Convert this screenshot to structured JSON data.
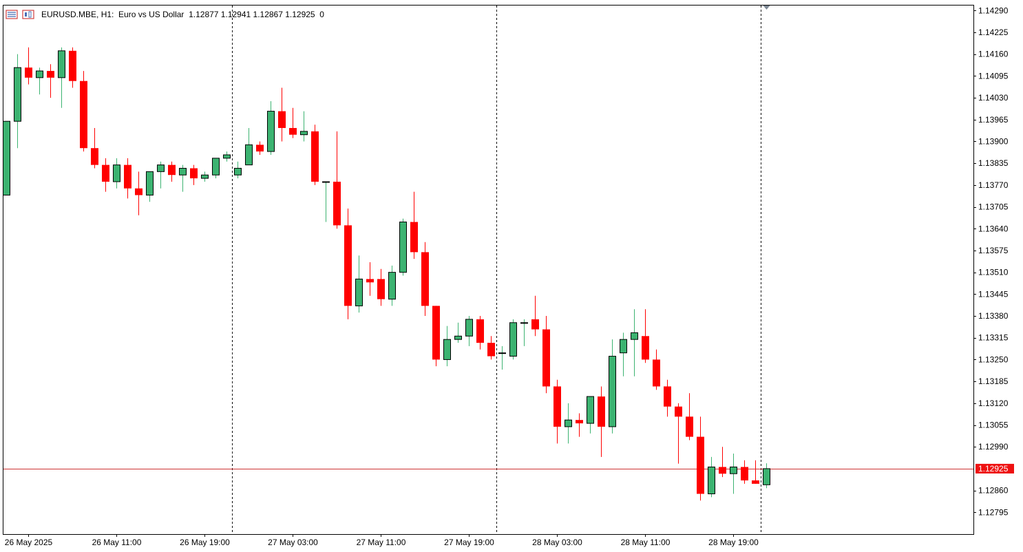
{
  "header": {
    "symbol": "EURUSD.MBE",
    "timeframe": "H1:",
    "description": "Euro vs US Dollar",
    "ohlc": "1.12877 1.12941 1.12867 1.12925",
    "volume": "0",
    "icons": [
      "symbol-list-icon",
      "chart-type-icon"
    ]
  },
  "colors": {
    "bull": "#3cb371",
    "bear": "#ff0000",
    "outline": "#000000",
    "price_line": "#cc3333",
    "price_tag_bg": "#ee1111",
    "grid_separator": "#000000"
  },
  "chart_data": {
    "type": "candlestick",
    "symbol": "EURUSD.MBE",
    "timeframe": "H1",
    "ylim": [
      1.1273,
      1.14307
    ],
    "y_ticks": [
      "1.14290",
      "1.14225",
      "1.14160",
      "1.14095",
      "1.14030",
      "1.13965",
      "1.13900",
      "1.13835",
      "1.13770",
      "1.13705",
      "1.13640",
      "1.13575",
      "1.13510",
      "1.13445",
      "1.13380",
      "1.13315",
      "1.13250",
      "1.13185",
      "1.13120",
      "1.13055",
      "1.12990",
      "1.12860",
      "1.12795"
    ],
    "x_labels": [
      {
        "index": 2,
        "label": "26 May 2025"
      },
      {
        "index": 10,
        "label": "26 May 11:00"
      },
      {
        "index": 18,
        "label": "26 May 19:00"
      },
      {
        "index": 26,
        "label": "27 May 03:00"
      },
      {
        "index": 34,
        "label": "27 May 11:00"
      },
      {
        "index": 42,
        "label": "27 May 19:00"
      },
      {
        "index": 50,
        "label": "28 May 03:00"
      },
      {
        "index": 58,
        "label": "28 May 11:00"
      },
      {
        "index": 66,
        "label": "28 May 19:00"
      }
    ],
    "day_separators": [
      20.5,
      44.5,
      68.5
    ],
    "current_price": 1.12925,
    "current_price_label": "1.12925",
    "candles": [
      {
        "o": 1.1374,
        "h": 1.1396,
        "l": 1.1374,
        "c": 1.1396
      },
      {
        "o": 1.1396,
        "h": 1.1416,
        "l": 1.1388,
        "c": 1.1412
      },
      {
        "o": 1.1412,
        "h": 1.1418,
        "l": 1.1407,
        "c": 1.1409
      },
      {
        "o": 1.1409,
        "h": 1.1412,
        "l": 1.1404,
        "c": 1.1411
      },
      {
        "o": 1.1411,
        "h": 1.1413,
        "l": 1.1403,
        "c": 1.1409
      },
      {
        "o": 1.1409,
        "h": 1.1418,
        "l": 1.14,
        "c": 1.1417
      },
      {
        "o": 1.1417,
        "h": 1.1418,
        "l": 1.1406,
        "c": 1.1408
      },
      {
        "o": 1.1408,
        "h": 1.1411,
        "l": 1.1387,
        "c": 1.1388
      },
      {
        "o": 1.1388,
        "h": 1.1394,
        "l": 1.1382,
        "c": 1.1383
      },
      {
        "o": 1.1383,
        "h": 1.1385,
        "l": 1.1375,
        "c": 1.1378
      },
      {
        "o": 1.1378,
        "h": 1.1385,
        "l": 1.1376,
        "c": 1.1383
      },
      {
        "o": 1.1383,
        "h": 1.1385,
        "l": 1.1373,
        "c": 1.1376
      },
      {
        "o": 1.1376,
        "h": 1.1381,
        "l": 1.1368,
        "c": 1.1374
      },
      {
        "o": 1.1374,
        "h": 1.1381,
        "l": 1.1372,
        "c": 1.1381
      },
      {
        "o": 1.1381,
        "h": 1.1384,
        "l": 1.1376,
        "c": 1.1383
      },
      {
        "o": 1.1383,
        "h": 1.1384,
        "l": 1.1378,
        "c": 1.138
      },
      {
        "o": 1.138,
        "h": 1.1383,
        "l": 1.1375,
        "c": 1.1382
      },
      {
        "o": 1.1382,
        "h": 1.1383,
        "l": 1.1377,
        "c": 1.1379
      },
      {
        "o": 1.1379,
        "h": 1.1381,
        "l": 1.1378,
        "c": 1.138
      },
      {
        "o": 1.138,
        "h": 1.1385,
        "l": 1.1379,
        "c": 1.1385
      },
      {
        "o": 1.1385,
        "h": 1.1387,
        "l": 1.1384,
        "c": 1.1386
      },
      {
        "o": 1.138,
        "h": 1.1384,
        "l": 1.1379,
        "c": 1.1382
      },
      {
        "o": 1.1383,
        "h": 1.1394,
        "l": 1.1383,
        "c": 1.1389
      },
      {
        "o": 1.1389,
        "h": 1.139,
        "l": 1.1386,
        "c": 1.1387
      },
      {
        "o": 1.1387,
        "h": 1.1402,
        "l": 1.1386,
        "c": 1.1399
      },
      {
        "o": 1.1399,
        "h": 1.1406,
        "l": 1.139,
        "c": 1.1394
      },
      {
        "o": 1.1394,
        "h": 1.14,
        "l": 1.1391,
        "c": 1.1392
      },
      {
        "o": 1.1392,
        "h": 1.1399,
        "l": 1.139,
        "c": 1.1393
      },
      {
        "o": 1.1393,
        "h": 1.1395,
        "l": 1.1377,
        "c": 1.1378
      },
      {
        "o": 1.1378,
        "h": 1.1378,
        "l": 1.1366,
        "c": 1.1378
      },
      {
        "o": 1.1378,
        "h": 1.1393,
        "l": 1.1364,
        "c": 1.1365
      },
      {
        "o": 1.1365,
        "h": 1.137,
        "l": 1.1337,
        "c": 1.1341
      },
      {
        "o": 1.1341,
        "h": 1.1356,
        "l": 1.1339,
        "c": 1.1349
      },
      {
        "o": 1.1349,
        "h": 1.1354,
        "l": 1.1344,
        "c": 1.1348
      },
      {
        "o": 1.1349,
        "h": 1.1352,
        "l": 1.1341,
        "c": 1.1343
      },
      {
        "o": 1.1343,
        "h": 1.1353,
        "l": 1.1341,
        "c": 1.1351
      },
      {
        "o": 1.1351,
        "h": 1.1367,
        "l": 1.135,
        "c": 1.1366
      },
      {
        "o": 1.1366,
        "h": 1.1375,
        "l": 1.1355,
        "c": 1.1357
      },
      {
        "o": 1.1357,
        "h": 1.136,
        "l": 1.1338,
        "c": 1.1341
      },
      {
        "o": 1.1341,
        "h": 1.1341,
        "l": 1.1323,
        "c": 1.1325
      },
      {
        "o": 1.1325,
        "h": 1.1335,
        "l": 1.1323,
        "c": 1.1331
      },
      {
        "o": 1.1331,
        "h": 1.1336,
        "l": 1.133,
        "c": 1.1332
      },
      {
        "o": 1.1332,
        "h": 1.1338,
        "l": 1.1329,
        "c": 1.1337
      },
      {
        "o": 1.1337,
        "h": 1.1338,
        "l": 1.1328,
        "c": 1.133
      },
      {
        "o": 1.133,
        "h": 1.1332,
        "l": 1.1325,
        "c": 1.1326
      },
      {
        "o": 1.1327,
        "h": 1.1329,
        "l": 1.1322,
        "c": 1.1327
      },
      {
        "o": 1.1326,
        "h": 1.1337,
        "l": 1.1325,
        "c": 1.1336
      },
      {
        "o": 1.1336,
        "h": 1.1337,
        "l": 1.1329,
        "c": 1.1336
      },
      {
        "o": 1.1337,
        "h": 1.1344,
        "l": 1.1332,
        "c": 1.1334
      },
      {
        "o": 1.1334,
        "h": 1.1338,
        "l": 1.1315,
        "c": 1.1317
      },
      {
        "o": 1.1317,
        "h": 1.1319,
        "l": 1.13,
        "c": 1.1305
      },
      {
        "o": 1.1305,
        "h": 1.1312,
        "l": 1.13,
        "c": 1.1307
      },
      {
        "o": 1.1307,
        "h": 1.1309,
        "l": 1.1302,
        "c": 1.1306
      },
      {
        "o": 1.1306,
        "h": 1.1314,
        "l": 1.1303,
        "c": 1.1314
      },
      {
        "o": 1.1314,
        "h": 1.1317,
        "l": 1.1296,
        "c": 1.1305
      },
      {
        "o": 1.1305,
        "h": 1.1331,
        "l": 1.1303,
        "c": 1.1326
      },
      {
        "o": 1.1327,
        "h": 1.1333,
        "l": 1.132,
        "c": 1.1331
      },
      {
        "o": 1.1331,
        "h": 1.134,
        "l": 1.132,
        "c": 1.1333
      },
      {
        "o": 1.1332,
        "h": 1.134,
        "l": 1.1324,
        "c": 1.1325
      },
      {
        "o": 1.1325,
        "h": 1.1328,
        "l": 1.1316,
        "c": 1.1317
      },
      {
        "o": 1.1317,
        "h": 1.1319,
        "l": 1.1308,
        "c": 1.1311
      },
      {
        "o": 1.1311,
        "h": 1.1312,
        "l": 1.1294,
        "c": 1.1308
      },
      {
        "o": 1.1308,
        "h": 1.1315,
        "l": 1.1301,
        "c": 1.1302
      },
      {
        "o": 1.1302,
        "h": 1.1308,
        "l": 1.1283,
        "c": 1.1285
      },
      {
        "o": 1.1285,
        "h": 1.1296,
        "l": 1.1284,
        "c": 1.1293
      },
      {
        "o": 1.1293,
        "h": 1.1299,
        "l": 1.129,
        "c": 1.1291
      },
      {
        "o": 1.1291,
        "h": 1.1297,
        "l": 1.1285,
        "c": 1.1293
      },
      {
        "o": 1.1293,
        "h": 1.1295,
        "l": 1.1288,
        "c": 1.1289
      },
      {
        "o": 1.1289,
        "h": 1.1295,
        "l": 1.1288,
        "c": 1.1288
      },
      {
        "o": 1.12877,
        "h": 1.12941,
        "l": 1.12867,
        "c": 1.12925
      }
    ]
  }
}
